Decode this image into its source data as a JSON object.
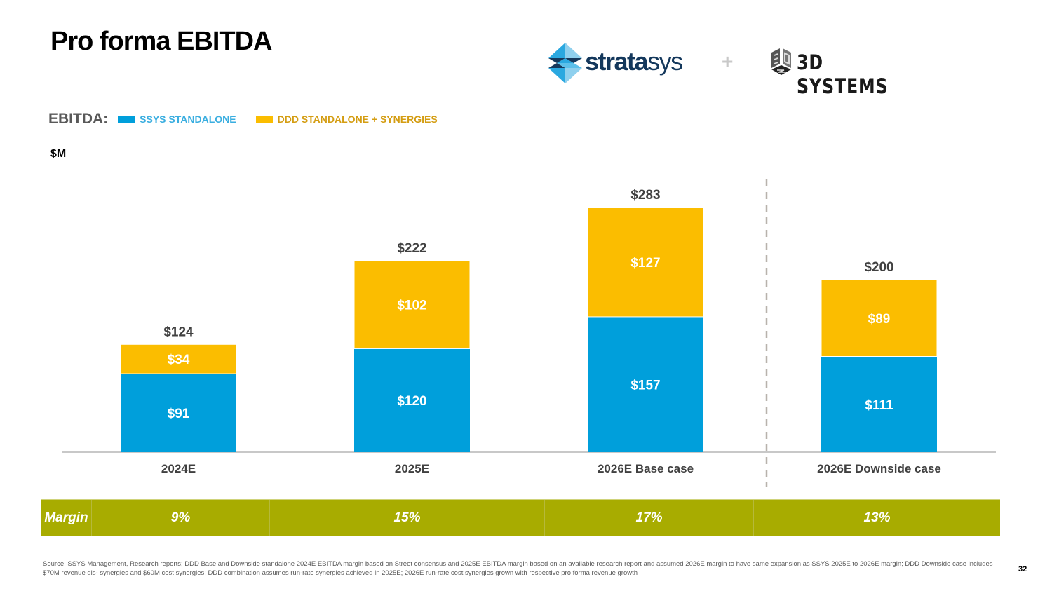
{
  "page": {
    "title": "Pro forma EBITDA",
    "page_number": "32"
  },
  "logos": {
    "left": {
      "name": "stratasys",
      "text_bold": "strata",
      "text_light": "sys"
    },
    "separator": "+",
    "right": {
      "name": "3d-systems",
      "text": "3D SYSTEMS"
    }
  },
  "legend": {
    "title": "EBITDA:",
    "items": [
      {
        "label": "SSYS STANDALONE",
        "color": "#009fdb",
        "text_color": "#3aaee0"
      },
      {
        "label": "DDD STANDALONE + SYNERGIES",
        "color": "#fbbd00",
        "text_color": "#d49d12"
      }
    ]
  },
  "unit_label": "$M",
  "chart_data": {
    "type": "bar",
    "stacked": true,
    "title": "Pro forma EBITDA",
    "xlabel": "",
    "ylabel": "$M",
    "categories": [
      "2024E",
      "2025E",
      "2026E Base case",
      "2026E Downside case"
    ],
    "series": [
      {
        "name": "SSYS STANDALONE",
        "color": "#009fdb",
        "values": [
          91,
          120,
          157,
          111
        ],
        "labels": [
          "$91",
          "$120",
          "$157",
          "$111"
        ]
      },
      {
        "name": "DDD STANDALONE + SYNERGIES",
        "color": "#fbbd00",
        "values": [
          34,
          102,
          127,
          89
        ],
        "labels": [
          "$34",
          "$102",
          "$127",
          "$89"
        ]
      }
    ],
    "totals": [
      124,
      222,
      283,
      200
    ],
    "total_labels": [
      "$124",
      "$222",
      "$283",
      "$200"
    ],
    "ylim": [
      0,
      300
    ],
    "grid": false,
    "legend_position": "top-left",
    "annotations": [
      {
        "type": "dashed-vertical-separator",
        "between": [
          "2026E Base case",
          "2026E Downside case"
        ]
      }
    ]
  },
  "margin_row": {
    "label": "Margin",
    "values": [
      "9%",
      "15%",
      "17%",
      "13%"
    ],
    "color": "#a8ac00"
  },
  "footnote": "Source: SSYS Management, Research reports; DDD Base and Downside standalone 2024E EBITDA margin based on Street consensus and 2025E EBITDA margin based on an available research report and assumed 2026E margin to have same expansion as SSYS 2025E to 2026E margin; DDD Downside case includes $70M revenue dis- synergies and $60M cost synergies; DDD combination assumes run-rate synergies achieved in 2025E; 2026E run-rate cost synergies grown with respective pro forma revenue growth"
}
